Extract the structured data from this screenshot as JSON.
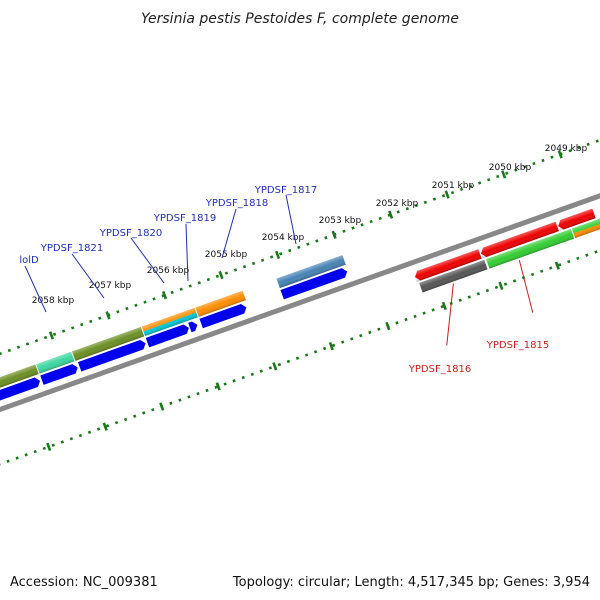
{
  "title": "Yersinia pestis Pestoides F, complete genome",
  "footer": {
    "accession": "Accession: NC_009381",
    "summary": "Topology: circular; Length: 4,517,345 bp; Genes: 3,954"
  },
  "axis_labels": [
    "2049 kbp",
    "2050 kbp",
    "2051 kbp",
    "2052 kbp",
    "2053 kbp",
    "2054 kbp",
    "2055 kbp",
    "2056 kbp",
    "2057 kbp",
    "2058 kbp"
  ],
  "gene_labels_top": [
    "lolD",
    "YPDSF_1821",
    "YPDSF_1820",
    "YPDSF_1819",
    "YPDSF_1818",
    "YPDSF_1817"
  ],
  "gene_labels_bottom": [
    "YPDSF_1816",
    "YPDSF_1815"
  ],
  "colors": {
    "olive": "#6b8e23",
    "spring_green": "#3cd6a0",
    "orange": "#ff8c00",
    "cyan": "#00c8d8",
    "steel_blue": "#4682b4",
    "blue": "#0000ee",
    "red": "#ee0000",
    "lime_green": "#32cd32",
    "dark_gray": "#555555",
    "backbone": "#888888",
    "tick_green": "#1a7a1a"
  }
}
